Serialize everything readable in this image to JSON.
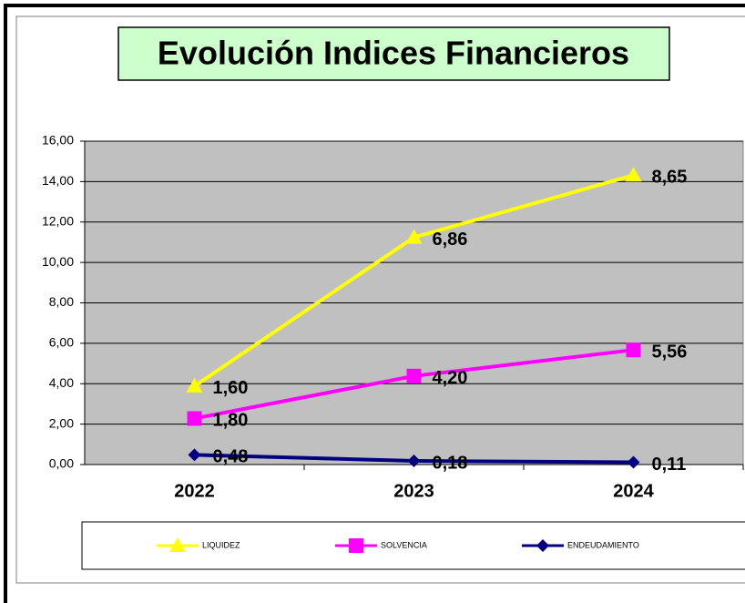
{
  "chart_data": {
    "type": "line",
    "stacked": true,
    "title": "Evolución Indices Financieros",
    "categories": [
      "2022",
      "2023",
      "2024"
    ],
    "series": [
      {
        "name": "LIQUIDEZ",
        "color": "#ffff00",
        "marker": "triangle",
        "values": [
          1.6,
          6.86,
          8.65
        ],
        "value_labels": [
          "1,60",
          "6,86",
          "8,65"
        ]
      },
      {
        "name": "SOLVENCIA",
        "color": "#ff00ff",
        "marker": "square",
        "values": [
          1.8,
          4.2,
          5.56
        ],
        "value_labels": [
          "1,80",
          "4,20",
          "5,56"
        ]
      },
      {
        "name": "ENDEUDAMIENTO",
        "color": "#000080",
        "marker": "diamond",
        "values": [
          0.48,
          0.18,
          0.11
        ],
        "value_labels": [
          "0,48",
          "0,18",
          "0,11"
        ]
      }
    ],
    "ylim": [
      0,
      16
    ],
    "yticks": [
      {
        "value": 0,
        "label": "0,00"
      },
      {
        "value": 2,
        "label": "2,00"
      },
      {
        "value": 4,
        "label": "4,00"
      },
      {
        "value": 6,
        "label": "6,00"
      },
      {
        "value": 8,
        "label": "8,00"
      },
      {
        "value": 10,
        "label": "10,00"
      },
      {
        "value": 12,
        "label": "12,00"
      },
      {
        "value": 14,
        "label": "14,00"
      },
      {
        "value": 16,
        "label": "16,00"
      }
    ],
    "grid": true,
    "legend": "bottom"
  }
}
